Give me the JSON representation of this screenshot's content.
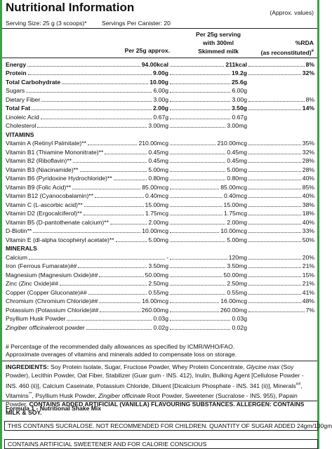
{
  "header": {
    "title": "Nutritional Information",
    "note": "(Approx. values)",
    "serving_size": "Serving Size: 25 g (3 scoops)*",
    "servings_per_canister": "Servings Per Canister: 20"
  },
  "columns": {
    "per_25g": "Per 25g approx.",
    "with_milk": [
      "Per 25g serving",
      "with 300ml",
      "Skimmed milk"
    ],
    "rda": [
      "%RDA",
      "(as reconstituted)"
    ],
    "rda_mark": "#"
  },
  "rows": [
    {
      "name": "Energy",
      "per_25g": "94.00kcal",
      "with_milk": "211kcal",
      "rda": "8%",
      "bold": true
    },
    {
      "name": "Protein",
      "per_25g": "9.00g",
      "with_milk": "19.2g",
      "rda": "32%",
      "bold": true
    },
    {
      "name": "Total Carbohydrate",
      "per_25g": "10.00g",
      "with_milk": "25.6g",
      "bold": true
    },
    {
      "name": "Sugars",
      "per_25g": "6.00g",
      "with_milk": "6.00g"
    },
    {
      "name": "Dietary Fiber",
      "per_25g": "3.00g",
      "with_milk": "3.00g",
      "rda": "8%"
    },
    {
      "name": "Total Fat",
      "per_25g": "2.00g",
      "with_milk": "3.50g",
      "rda": "14%",
      "bold": true
    },
    {
      "name": "Linoleic Acid",
      "per_25g": "0.67g",
      "with_milk": "0.67g"
    },
    {
      "name": "Cholesterol",
      "per_25g": "3.00mg",
      "with_milk": "3.00mg"
    },
    {
      "section": "VITAMINS"
    },
    {
      "name": "Vitamin A (Retinyl Palmitate)**",
      "per_25g": "210.00mcg",
      "with_milk": "210.00mcg",
      "rda": "35%"
    },
    {
      "name": "Vitamin B1 (Thiamine Mononitrate)**",
      "per_25g": "0.45mg",
      "with_milk": "0.45mg",
      "rda": "32%"
    },
    {
      "name": "Vitamin B2 (Riboflavin)**",
      "per_25g": "0.45mg",
      "with_milk": "0.45mg",
      "rda": "28%"
    },
    {
      "name": "Vitamin B3 (Niacinamide)**",
      "per_25g": "5.00mg",
      "with_milk": "5.00mg",
      "rda": "28%"
    },
    {
      "name": "Vitamin B6 (Pyridoxine Hydrochloride)**",
      "per_25g": "0.80mg",
      "with_milk": "0.80mg",
      "rda": "40%"
    },
    {
      "name": "Vitamin B9 (Folic Acid)**",
      "per_25g": "85.00mcg",
      "with_milk": "85.00mcg",
      "rda": "85%"
    },
    {
      "name": "Vitamin B12 (Cyanocobalamin)**",
      "per_25g": "0.40mcg",
      "with_milk": "0.40mcg",
      "rda": "40%"
    },
    {
      "name": "Vitamin C (L-ascorbic acid)**",
      "per_25g": "15.00mg",
      "with_milk": "15.00mg",
      "rda": "38%"
    },
    {
      "name": "Vitamin D2 (Ergocalciferol)**",
      "per_25g": "1.75mcg",
      "with_milk": "1.75mcg",
      "rda": "18%"
    },
    {
      "name": "Vitamin B5 (D-pantothenate calcium)**",
      "per_25g": "2.00mg",
      "with_milk": "2.00mg",
      "rda": "40%"
    },
    {
      "name": "D-Biotin**",
      "per_25g": "10.00mcg",
      "with_milk": "10.00mcg",
      "rda": "33%"
    },
    {
      "name": "Vitamin E (dl-alpha tocopheryl acetate)**",
      "per_25g": "5.00mg",
      "with_milk": "5.00mg",
      "rda": "50%"
    },
    {
      "section": "MINERALS"
    },
    {
      "name": "Calcium",
      "per_25g": "-",
      "with_milk": "120mg",
      "rda": "20%"
    },
    {
      "name": "Iron (Ferrous Fumarate)##",
      "per_25g": "3.50mg",
      "with_milk": "3.50mg",
      "rda": "21%"
    },
    {
      "name": "Magnesium (Magnesium Oxide)##",
      "per_25g": "50.00mg",
      "with_milk": "50.00mg",
      "rda": "15%"
    },
    {
      "name": "Zinc (Zinc Oxide)##",
      "per_25g": "2.50mg",
      "with_milk": "2.50mg",
      "rda": "21%"
    },
    {
      "name": "Copper (Copper Gluconate)##",
      "per_25g": "0.55mg",
      "with_milk": "0.55mg",
      "rda": "41%"
    },
    {
      "name": "Chromium (Chromium Chloride)##",
      "per_25g": "16.00mcg",
      "with_milk": "16.00mcg",
      "rda": "48%"
    },
    {
      "name": "Potassium (Potassium Chloride)##",
      "per_25g": "260.00mg",
      "with_milk": "260.00mg",
      "rda": "7%"
    },
    {
      "name": "Psyllium Husk Powder",
      "per_25g": "0.03g",
      "with_milk": "0.03g"
    },
    {
      "name_italic": "Zingiber officinale",
      "name": " root powder",
      "per_25g": "0.02g",
      "with_milk": "0.02g"
    }
  ],
  "footnotes": [
    "# Percentage of the recommended daily allowances as specified by ICMR/WHO/FAO.",
    "Approximate overages of vitamins and minerals added to compensate loss on storage."
  ],
  "ingredients": {
    "label": "INGREDIENTS:",
    "parts": [
      " Soy Protein Isolate, Sugar, Fructose Powder, Whey Protein Concentrate, ",
      "Glycine max",
      " (Soy Powder), Lecithin Powder, Oat Fiber, Stabilizer (Guar gum - INS. 412), Inulin, Bulking Agent [Cellulose Powder - INS. 460 (ii)], Calcium Caseinate, Potassium Chloride, Diluent [Dicalcium Phosphate - INS. 341 (ii)], Minerals",
      "##",
      ", Vitamins",
      "**",
      ", Psyllium Husk Powder, ",
      "Zingiber officinale",
      " Root Powder, Sweetener (Sucralose - INS. 955), Papain Powder. ",
      "CONTAINS ADDED ARTIFICIAL (VANILLA) FLAVOURING SUBSTANCES. ALLERGEN: CONTAINS MILK & SOY."
    ]
  },
  "product": "Formula 1 - Nutritional Shake Mix",
  "warnings": [
    "THIS CONTAINS SUCRALOSE. NOT RECOMMENDED FOR CHILDREN. QUANTITY OF SUGAR ADDED 24gm/100gm",
    "CONTAINS ARTIFICIAL SWEETENER AND FOR CALORIE CONSCIOUS"
  ]
}
